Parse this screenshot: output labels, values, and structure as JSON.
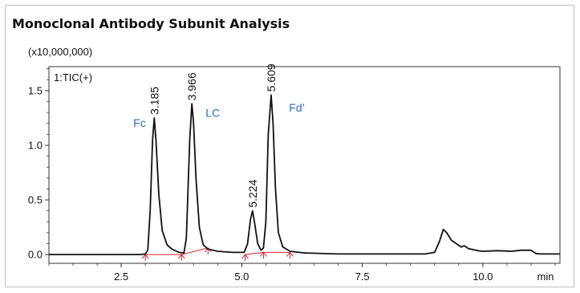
{
  "title": "Monoclonal Antibody Subunit Analysis",
  "chart_data": {
    "type": "line",
    "title": "Monoclonal Antibody Subunit Analysis",
    "multiplier_label": "(x10,000,000)",
    "trace_label": "1:TIC(+)",
    "xlabel": "min",
    "ylabel": "",
    "xlim": [
      1.0,
      11.6
    ],
    "ylim": [
      -0.08,
      1.72
    ],
    "x_ticks": [
      {
        "value": 2.5,
        "label": "2.5"
      },
      {
        "value": 5.0,
        "label": "5.0"
      },
      {
        "value": 7.5,
        "label": "7.5"
      },
      {
        "value": 10.0,
        "label": "10.0"
      }
    ],
    "y_ticks": [
      {
        "value": 0.0,
        "label": "0.0"
      },
      {
        "value": 0.5,
        "label": "0.5"
      },
      {
        "value": 1.0,
        "label": "1.0"
      },
      {
        "value": 1.5,
        "label": "1.5"
      }
    ],
    "peaks": [
      {
        "rt": 3.185,
        "label": "3.185",
        "height": 1.25
      },
      {
        "rt": 3.966,
        "label": "3.966",
        "height": 1.38
      },
      {
        "rt": 5.224,
        "label": "5.224",
        "height": 0.4
      },
      {
        "rt": 5.609,
        "label": "5.609",
        "height": 1.46
      }
    ],
    "components": [
      {
        "label": "Fc",
        "x": 2.75,
        "y": 1.17
      },
      {
        "label": "LC",
        "x": 4.25,
        "y": 1.26
      },
      {
        "label": "Fd’",
        "x": 5.98,
        "y": 1.31
      }
    ],
    "integration_markers": [
      {
        "x": 3.0,
        "y": 0.0
      },
      {
        "x": 3.75,
        "y": 0.0
      },
      {
        "x": 4.3,
        "y": 0.06
      },
      {
        "x": 5.07,
        "y": 0.0
      },
      {
        "x": 5.45,
        "y": 0.02
      },
      {
        "x": 6.0,
        "y": 0.02
      }
    ],
    "trace_points": [
      [
        1.0,
        0.0
      ],
      [
        2.9,
        0.0
      ],
      [
        3.0,
        0.005
      ],
      [
        3.05,
        0.04
      ],
      [
        3.1,
        0.4
      ],
      [
        3.15,
        1.05
      ],
      [
        3.185,
        1.25
      ],
      [
        3.22,
        1.05
      ],
      [
        3.28,
        0.55
      ],
      [
        3.35,
        0.22
      ],
      [
        3.45,
        0.09
      ],
      [
        3.55,
        0.05
      ],
      [
        3.7,
        0.02
      ],
      [
        3.8,
        0.015
      ],
      [
        3.85,
        0.15
      ],
      [
        3.92,
        1.05
      ],
      [
        3.966,
        1.38
      ],
      [
        4.0,
        1.2
      ],
      [
        4.05,
        0.7
      ],
      [
        4.12,
        0.25
      ],
      [
        4.2,
        0.09
      ],
      [
        4.3,
        0.05
      ],
      [
        4.5,
        0.03
      ],
      [
        4.8,
        0.02
      ],
      [
        5.05,
        0.02
      ],
      [
        5.12,
        0.1
      ],
      [
        5.18,
        0.32
      ],
      [
        5.224,
        0.4
      ],
      [
        5.27,
        0.28
      ],
      [
        5.33,
        0.1
      ],
      [
        5.4,
        0.04
      ],
      [
        5.45,
        0.06
      ],
      [
        5.5,
        0.3
      ],
      [
        5.55,
        1.1
      ],
      [
        5.609,
        1.46
      ],
      [
        5.65,
        1.2
      ],
      [
        5.7,
        0.6
      ],
      [
        5.76,
        0.2
      ],
      [
        5.85,
        0.07
      ],
      [
        6.0,
        0.03
      ],
      [
        6.3,
        0.015
      ],
      [
        7.0,
        0.005
      ],
      [
        8.8,
        0.005
      ],
      [
        9.0,
        0.02
      ],
      [
        9.1,
        0.12
      ],
      [
        9.18,
        0.23
      ],
      [
        9.25,
        0.2
      ],
      [
        9.35,
        0.13
      ],
      [
        9.45,
        0.1
      ],
      [
        9.55,
        0.07
      ],
      [
        9.62,
        0.08
      ],
      [
        9.7,
        0.055
      ],
      [
        9.8,
        0.045
      ],
      [
        9.9,
        0.035
      ],
      [
        10.0,
        0.03
      ],
      [
        10.3,
        0.035
      ],
      [
        10.6,
        0.03
      ],
      [
        10.8,
        0.04
      ],
      [
        11.0,
        0.04
      ],
      [
        11.1,
        0.01
      ],
      [
        11.2,
        0.005
      ],
      [
        11.6,
        0.005
      ]
    ],
    "grid": false,
    "colors": {
      "trace": "#111111",
      "component_label": "#2e6db4",
      "integration": "#d9232d",
      "axis": "#333333"
    }
  }
}
